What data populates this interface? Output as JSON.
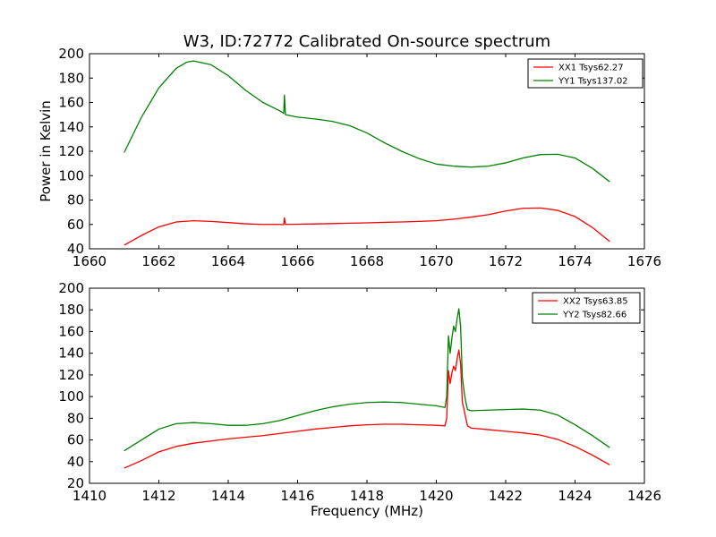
{
  "figure": {
    "title": "W3, ID:72772 Calibrated On-source spectrum",
    "xlabel": "Frequency (MHz)",
    "ylabel": "Power in Kelvin"
  },
  "chart_data": [
    {
      "type": "line",
      "title": "W3, ID:72772 Calibrated On-source spectrum",
      "xlabel": "",
      "ylabel": "Power in Kelvin",
      "xlim": [
        1660,
        1676
      ],
      "ylim": [
        40,
        200
      ],
      "xticks": [
        1660,
        1662,
        1664,
        1666,
        1668,
        1670,
        1672,
        1674,
        1676
      ],
      "yticks": [
        40,
        60,
        80,
        100,
        120,
        140,
        160,
        180,
        200
      ],
      "grid": false,
      "legend_position": "top-right",
      "series": [
        {
          "name": "XX1 Tsys62.27",
          "color": "#ff0000",
          "x": [
            1661.0,
            1661.5,
            1662.0,
            1662.5,
            1663.0,
            1663.5,
            1664.0,
            1664.5,
            1665.0,
            1665.5,
            1665.6,
            1665.62,
            1665.65,
            1666.0,
            1666.5,
            1667.0,
            1667.5,
            1668.0,
            1668.5,
            1669.0,
            1669.5,
            1670.0,
            1670.5,
            1671.0,
            1671.5,
            1672.0,
            1672.5,
            1673.0,
            1673.5,
            1674.0,
            1674.5,
            1675.0
          ],
          "y": [
            43,
            51,
            58,
            62,
            63,
            62.5,
            61.5,
            60.5,
            60,
            60,
            59.8,
            65.5,
            60,
            60.2,
            60.4,
            60.7,
            61,
            61.3,
            61.7,
            62,
            62.5,
            63,
            64.3,
            66,
            68,
            71,
            73.2,
            73.5,
            71.5,
            66.5,
            57.5,
            46
          ]
        },
        {
          "name": "YY1 Tsys137.02",
          "color": "#008000",
          "x": [
            1661.0,
            1661.5,
            1662.0,
            1662.5,
            1662.8,
            1663.0,
            1663.5,
            1664.0,
            1664.5,
            1665.0,
            1665.5,
            1665.6,
            1665.62,
            1665.65,
            1666.0,
            1666.5,
            1667.0,
            1667.5,
            1668.0,
            1668.5,
            1669.0,
            1669.5,
            1670.0,
            1670.5,
            1671.0,
            1671.5,
            1672.0,
            1672.5,
            1673.0,
            1673.5,
            1674.0,
            1674.5,
            1675.0
          ],
          "y": [
            119,
            148,
            172,
            188,
            193,
            194,
            191,
            182,
            170,
            160,
            153,
            151,
            166,
            150,
            148,
            146.5,
            144.5,
            141,
            135,
            127,
            120,
            114,
            109.5,
            107.8,
            107,
            107.8,
            110.5,
            114.5,
            117.3,
            117.5,
            114.5,
            106,
            95
          ]
        }
      ]
    },
    {
      "type": "line",
      "title": "",
      "xlabel": "Frequency (MHz)",
      "ylabel": "",
      "xlim": [
        1410,
        1426
      ],
      "ylim": [
        20,
        200
      ],
      "xticks": [
        1410,
        1412,
        1414,
        1416,
        1418,
        1420,
        1422,
        1424,
        1426
      ],
      "yticks": [
        20,
        40,
        60,
        80,
        100,
        120,
        140,
        160,
        180,
        200
      ],
      "grid": false,
      "legend_position": "top-right",
      "series": [
        {
          "name": "XX2 Tsys63.85",
          "color": "#ff0000",
          "x": [
            1411.0,
            1411.5,
            1412.0,
            1412.5,
            1413.0,
            1413.5,
            1414.0,
            1414.5,
            1415.0,
            1415.5,
            1416.0,
            1416.5,
            1417.0,
            1417.5,
            1418.0,
            1418.5,
            1419.0,
            1419.5,
            1420.0,
            1420.25,
            1420.3,
            1420.35,
            1420.4,
            1420.45,
            1420.5,
            1420.55,
            1420.6,
            1420.65,
            1420.7,
            1420.75,
            1420.8,
            1420.85,
            1420.9,
            1421.0,
            1421.5,
            1422.0,
            1422.5,
            1423.0,
            1423.5,
            1424.0,
            1424.5,
            1425.0
          ],
          "y": [
            34,
            41,
            49,
            54,
            57,
            59,
            61,
            62.5,
            64,
            66,
            68,
            70,
            71.5,
            73,
            74,
            74.5,
            74.5,
            74,
            73.5,
            73,
            80,
            124,
            112,
            122,
            128,
            124,
            135,
            143,
            130,
            95,
            88,
            80,
            73,
            71,
            69.5,
            68,
            66.5,
            64.5,
            60.5,
            54,
            46,
            37
          ]
        },
        {
          "name": "YY2 Tsys82.66",
          "color": "#008000",
          "x": [
            1411.0,
            1411.5,
            1412.0,
            1412.5,
            1413.0,
            1413.5,
            1414.0,
            1414.5,
            1415.0,
            1415.5,
            1416.0,
            1416.5,
            1417.0,
            1417.5,
            1418.0,
            1418.5,
            1419.0,
            1419.5,
            1420.0,
            1420.25,
            1420.3,
            1420.35,
            1420.4,
            1420.45,
            1420.5,
            1420.55,
            1420.6,
            1420.65,
            1420.7,
            1420.75,
            1420.8,
            1420.85,
            1420.9,
            1421.0,
            1421.5,
            1422.0,
            1422.5,
            1423.0,
            1423.5,
            1424.0,
            1424.5,
            1425.0
          ],
          "y": [
            50,
            60,
            70,
            75,
            76,
            75,
            73.5,
            73.5,
            75,
            78,
            82.5,
            87,
            90.5,
            93,
            94.5,
            95,
            94.5,
            93,
            91.5,
            90,
            100,
            156,
            140,
            154,
            165,
            160,
            172,
            181,
            165,
            118,
            105,
            95,
            88,
            87,
            87.5,
            88,
            88.5,
            87.5,
            83,
            74,
            64,
            53
          ]
        }
      ]
    }
  ]
}
